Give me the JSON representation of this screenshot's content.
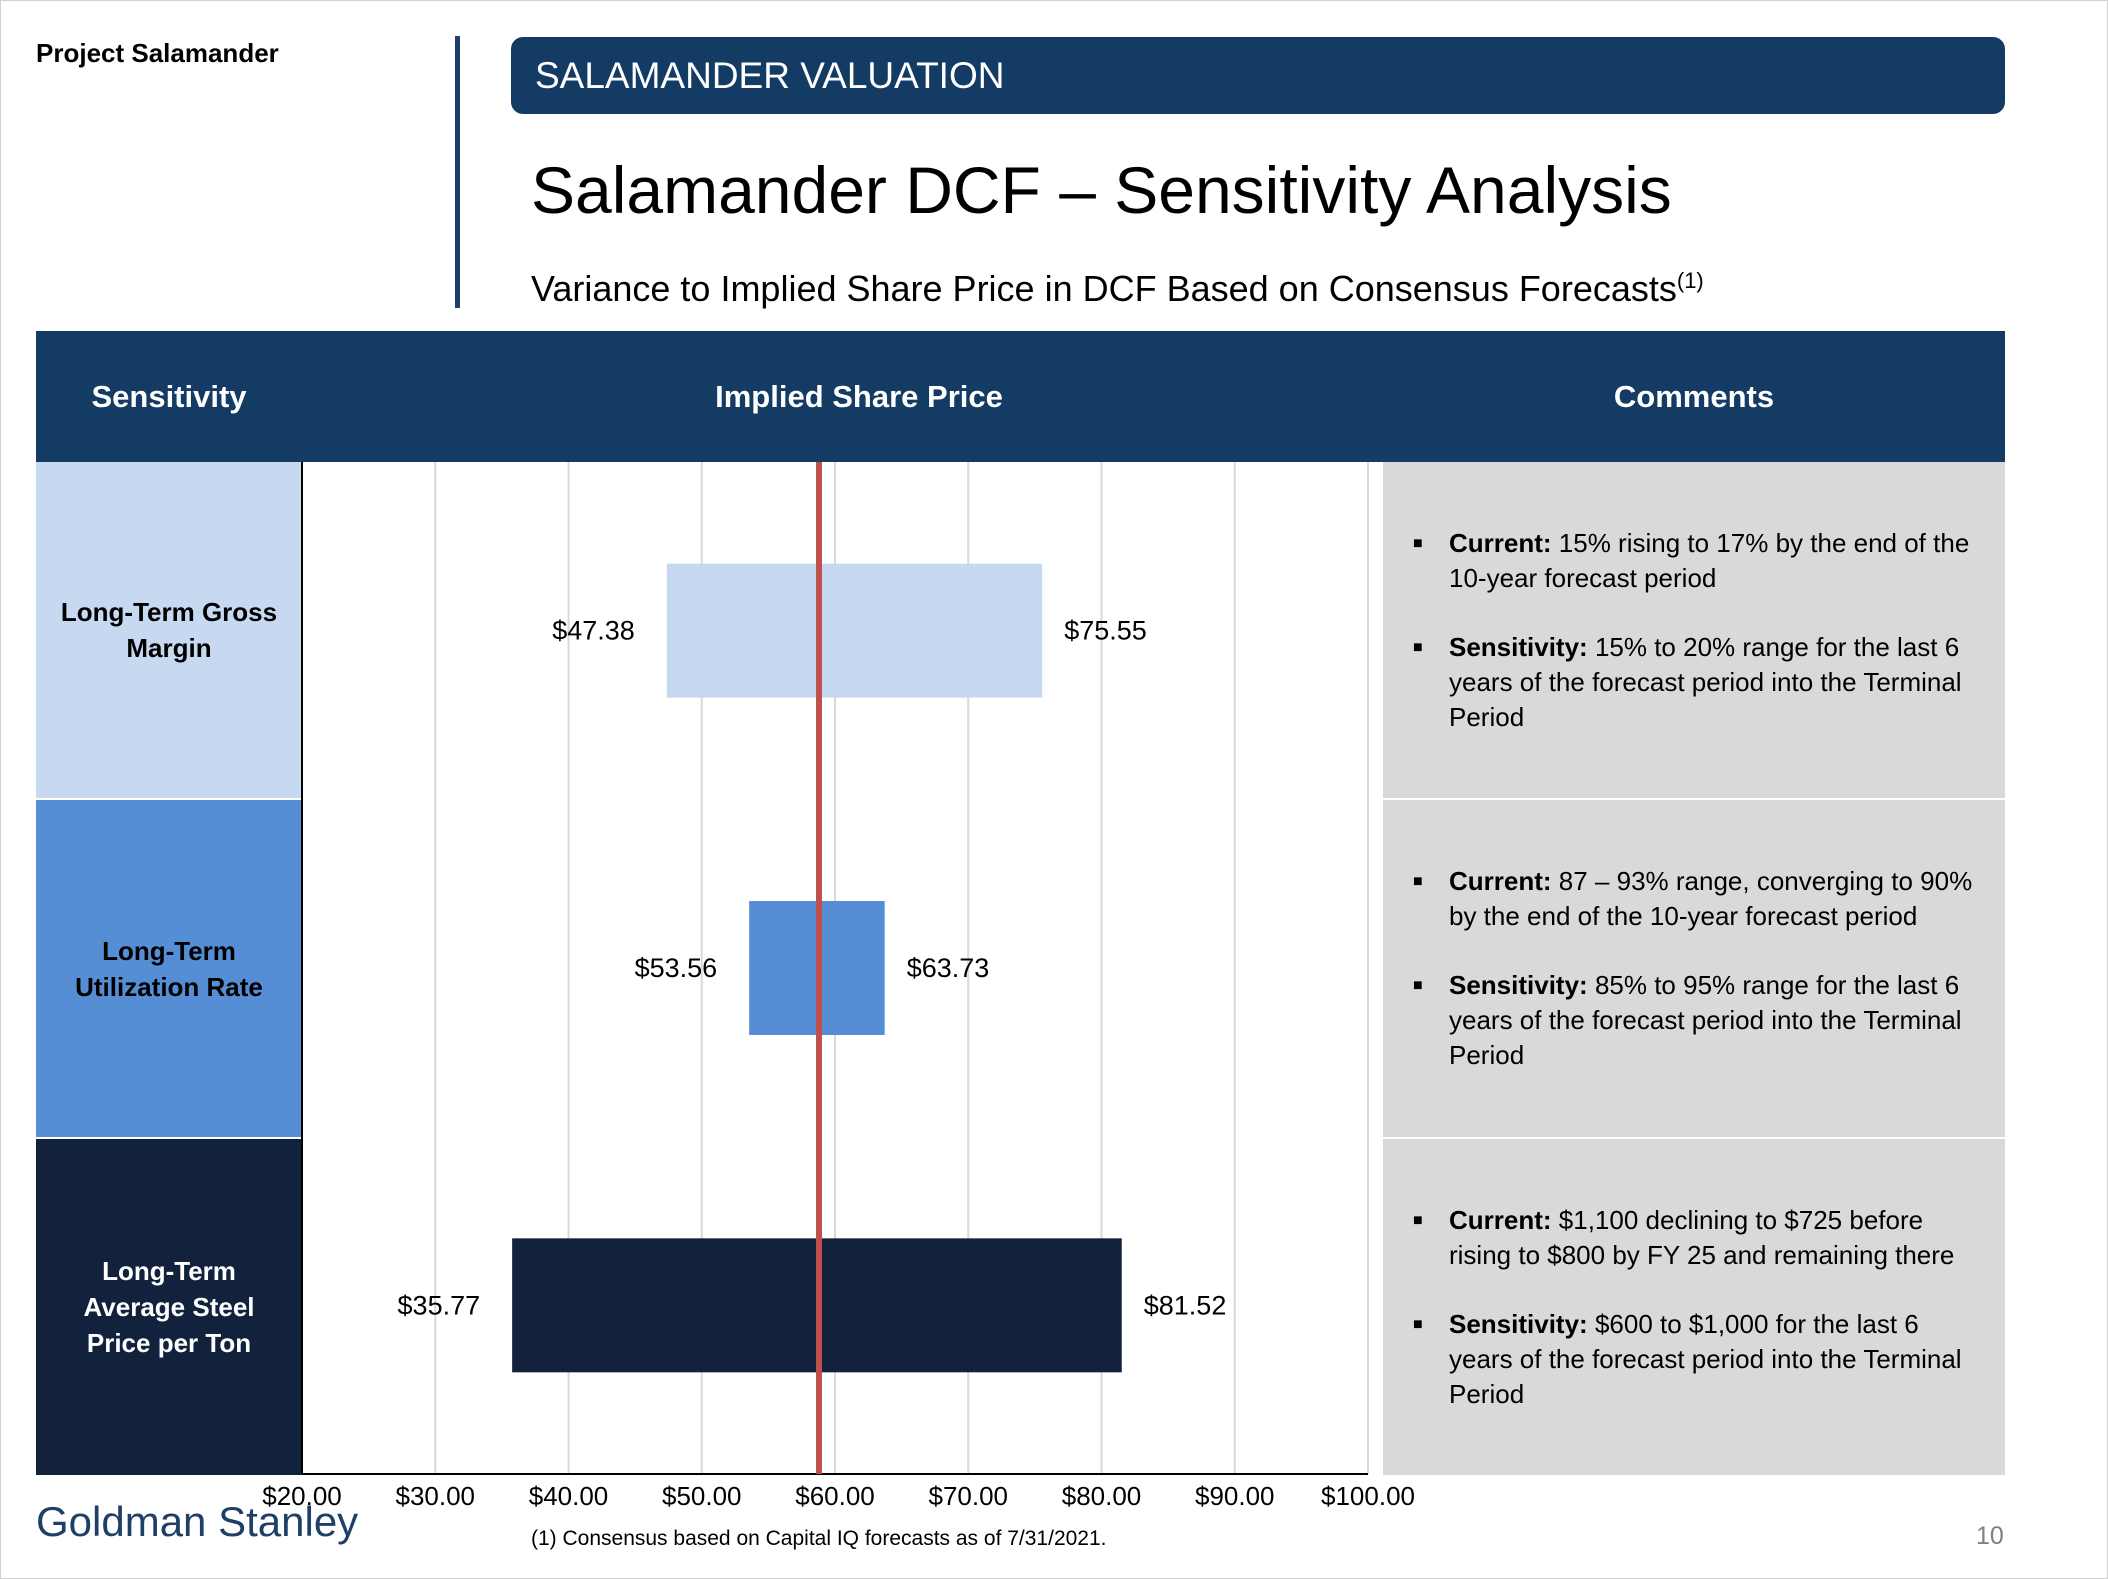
{
  "project_label": "Project Salamander",
  "banner": "SALAMANDER VALUATION",
  "title": "Salamander DCF – Sensitivity Analysis",
  "subtitle": "Variance to Implied Share Price in DCF Based on Consensus Forecasts",
  "subtitle_note": "(1)",
  "headers": {
    "sensitivity": "Sensitivity",
    "implied_share_price": "Implied Share Price",
    "comments": "Comments"
  },
  "rows": [
    {
      "label": "Long-Term Gross Margin",
      "color": "#c6d9f1",
      "text_color": "#000000",
      "comments": [
        {
          "key": "Current:",
          "text": " 15% rising to 17% by the end of the 10-year forecast period"
        },
        {
          "key": "Sensitivity:",
          "text": " 15% to 20% range for the last 6 years of the forecast period into the Terminal Period"
        }
      ]
    },
    {
      "label": "Long-Term Utilization Rate",
      "color": "#558ed5",
      "text_color": "#000000",
      "comments": [
        {
          "key": "Current:",
          "text": " 87 – 93% range, converging to 90% by the end of the 10-year forecast period"
        },
        {
          "key": "Sensitivity:",
          "text": " 85% to 95% range for the last 6 years of the forecast period into the Terminal Period"
        }
      ]
    },
    {
      "label": "Long-Term Average Steel Price per Ton",
      "color": "#12223d",
      "text_color": "#ffffff",
      "comments": [
        {
          "key": "Current:",
          "text": " $1,100 declining to $725 before rising to $800 by FY 25 and remaining there"
        },
        {
          "key": "Sensitivity:",
          "text": " $600 to $1,000 for the last 6 years of the forecast period into the Terminal Period"
        }
      ]
    }
  ],
  "chart_data": {
    "type": "bar",
    "orientation": "horizontal-range",
    "categories": [
      "Long-Term Gross Margin",
      "Long-Term Utilization Rate",
      "Long-Term Average Steel Price per Ton"
    ],
    "series": [
      {
        "values": [
          [
            47.38,
            75.55
          ],
          [
            53.56,
            63.73
          ],
          [
            35.77,
            81.52
          ]
        ]
      }
    ],
    "low_labels": [
      "$47.38",
      "$53.56",
      "$35.77"
    ],
    "high_labels": [
      "$75.55",
      "$63.73",
      "$81.52"
    ],
    "reference_line": 58.8,
    "reference_color": "#c0504d",
    "xlim": [
      20,
      100
    ],
    "xticks": [
      20,
      30,
      40,
      50,
      60,
      70,
      80,
      90,
      100
    ],
    "xtick_labels": [
      "$20.00",
      "$30.00",
      "$40.00",
      "$50.00",
      "$60.00",
      "$70.00",
      "$80.00",
      "$90.00",
      "$100.00"
    ],
    "grid": true
  },
  "footnote": "(1) Consensus based on Capital IQ forecasts as of 7/31/2021.",
  "brand": "Goldman Stanley",
  "page_number": "10"
}
